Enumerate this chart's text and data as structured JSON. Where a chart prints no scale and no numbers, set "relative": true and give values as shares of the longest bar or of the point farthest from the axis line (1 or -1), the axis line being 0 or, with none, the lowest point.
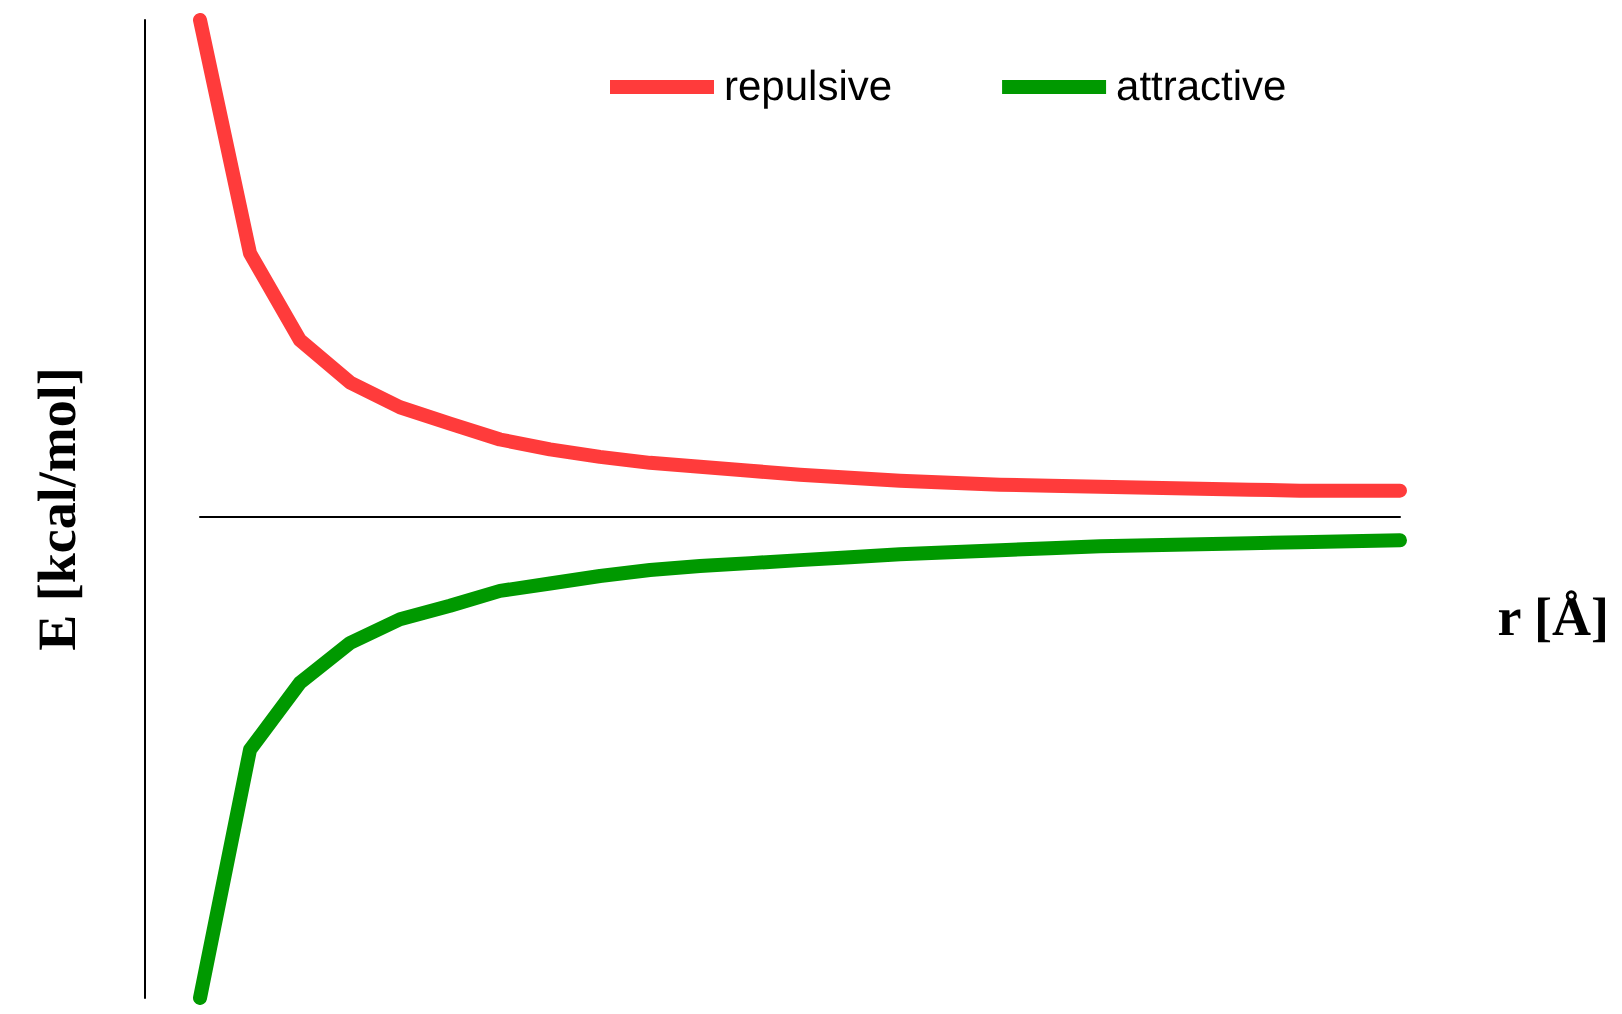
{
  "chart_data": {
    "type": "line",
    "relative": true,
    "xlabel": "r [Å]",
    "ylabel": "E [kcal/mol]",
    "legend": "top right",
    "grid": false,
    "categories": [
      null,
      null,
      null,
      null,
      null,
      null,
      null,
      null,
      null,
      null,
      null,
      null,
      null,
      null,
      null,
      null,
      null,
      null,
      null,
      null,
      null,
      null,
      null,
      null,
      null
    ],
    "series": [
      {
        "name": "repulsive",
        "color": "#ff3b3b",
        "values": [
          1.0,
          0.53,
          0.355,
          0.27,
          0.22,
          0.187,
          0.155,
          0.135,
          0.12,
          0.108,
          0.1,
          0.092,
          0.084,
          0.078,
          0.072,
          0.068,
          0.064,
          0.062,
          0.06,
          0.058,
          0.056,
          0.054,
          0.052,
          0.052,
          0.052
        ]
      },
      {
        "name": "attractive",
        "color": "#009900",
        "values": [
          -0.97,
          -0.47,
          -0.335,
          -0.255,
          -0.207,
          -0.18,
          -0.15,
          -0.135,
          -0.12,
          -0.108,
          -0.1,
          -0.094,
          -0.088,
          -0.082,
          -0.076,
          -0.072,
          -0.068,
          -0.064,
          -0.06,
          -0.058,
          -0.056,
          -0.054,
          -0.052,
          -0.05,
          -0.048
        ]
      }
    ]
  }
}
